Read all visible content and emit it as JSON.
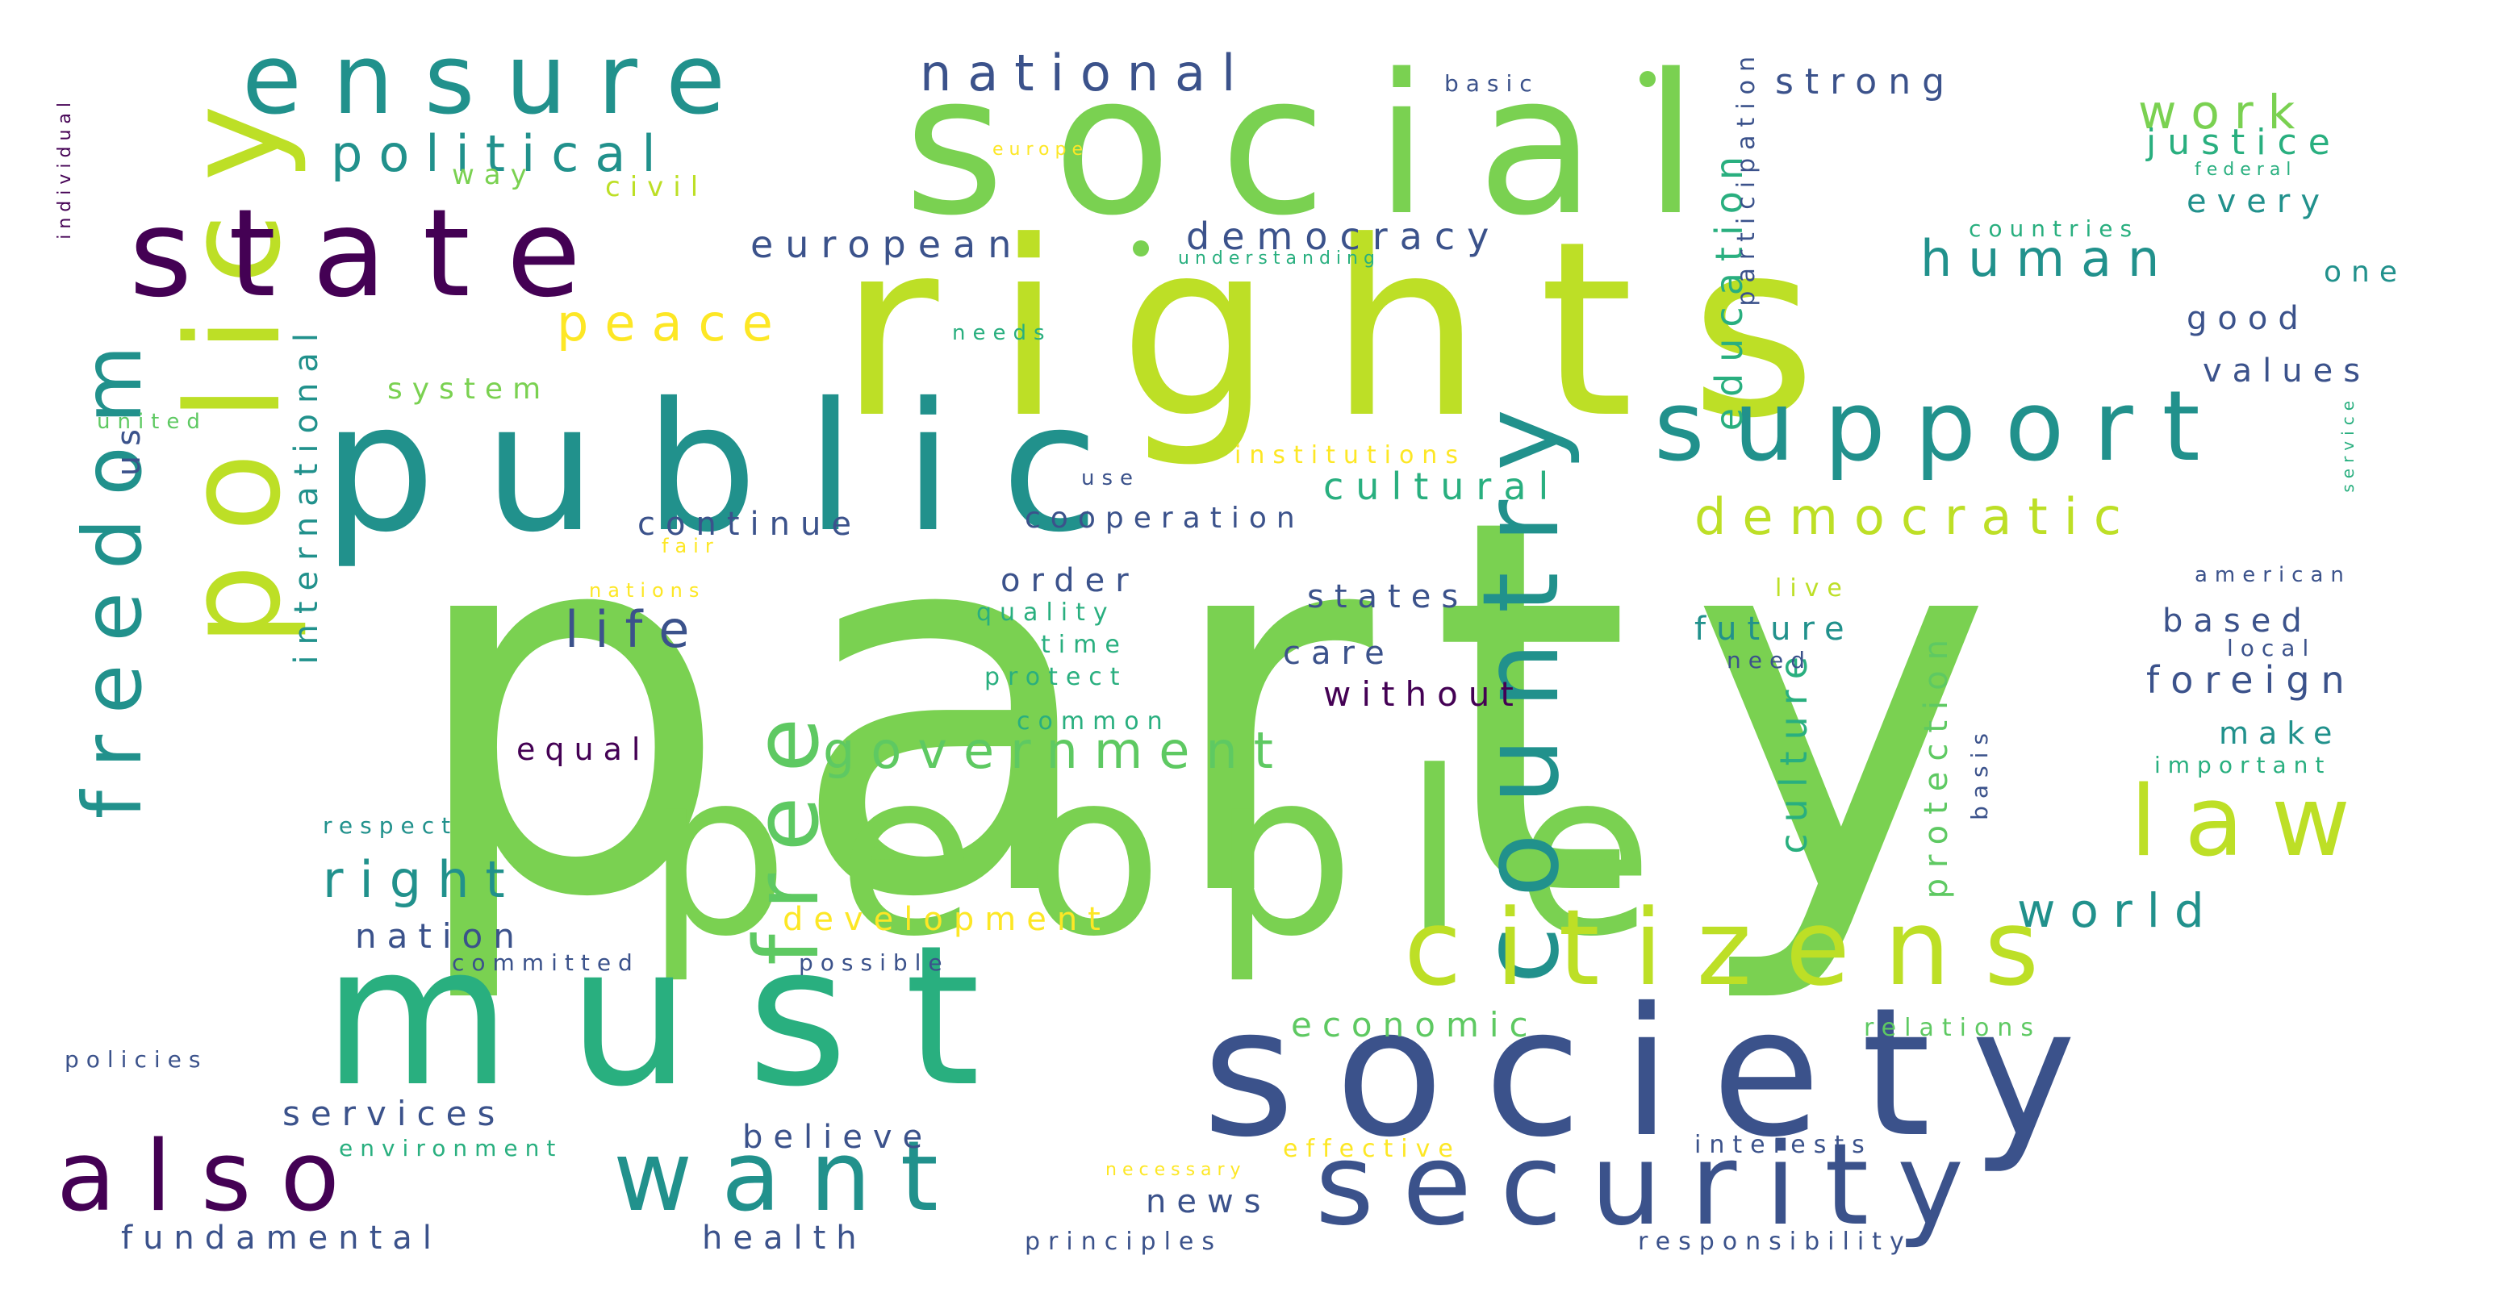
{
  "colors": {
    "background": "#ffffff",
    "palette": [
      "#440154",
      "#3b528b",
      "#21918c",
      "#29af7f",
      "#5ec962",
      "#7ad151",
      "#bddf26",
      "#fde725"
    ]
  },
  "words": [
    {
      "id": "party",
      "text": "party"
    },
    {
      "id": "rights",
      "text": "rights"
    },
    {
      "id": "people",
      "text": "people"
    },
    {
      "id": "social",
      "text": "social"
    },
    {
      "id": "public",
      "text": "public"
    },
    {
      "id": "must",
      "text": "must"
    },
    {
      "id": "society",
      "text": "society"
    },
    {
      "id": "security",
      "text": "security"
    },
    {
      "id": "policy",
      "text": "policy"
    },
    {
      "id": "state",
      "text": "state"
    },
    {
      "id": "ensure",
      "text": "ensure"
    },
    {
      "id": "country",
      "text": "country"
    },
    {
      "id": "citizens",
      "text": "citizens"
    },
    {
      "id": "support",
      "text": "support"
    },
    {
      "id": "also",
      "text": "also"
    },
    {
      "id": "want",
      "text": "want"
    },
    {
      "id": "freedom",
      "text": "freedom"
    },
    {
      "id": "free",
      "text": "free"
    },
    {
      "id": "law",
      "text": "law"
    },
    {
      "id": "national",
      "text": "national"
    },
    {
      "id": "political",
      "text": "political"
    },
    {
      "id": "government",
      "text": "government"
    },
    {
      "id": "democratic",
      "text": "democratic"
    },
    {
      "id": "strong",
      "text": "strong"
    },
    {
      "id": "work",
      "text": "work"
    },
    {
      "id": "justice",
      "text": "justice"
    },
    {
      "id": "human",
      "text": "human"
    },
    {
      "id": "european",
      "text": "european"
    },
    {
      "id": "democracy",
      "text": "democracy"
    },
    {
      "id": "peace",
      "text": "peace"
    },
    {
      "id": "right",
      "text": "right"
    },
    {
      "id": "world",
      "text": "world"
    },
    {
      "id": "life",
      "text": "life"
    },
    {
      "id": "cultural",
      "text": "cultural"
    },
    {
      "id": "education",
      "text": "education"
    },
    {
      "id": "international",
      "text": "international"
    },
    {
      "id": "culture",
      "text": "culture"
    },
    {
      "id": "protection",
      "text": "protection"
    },
    {
      "id": "participation",
      "text": "participation"
    },
    {
      "id": "development",
      "text": "development"
    },
    {
      "id": "economic",
      "text": "economic"
    },
    {
      "id": "services",
      "text": "services"
    },
    {
      "id": "nation",
      "text": "nation"
    },
    {
      "id": "cooperation",
      "text": "cooperation"
    },
    {
      "id": "continue",
      "text": "continue"
    },
    {
      "id": "states",
      "text": "states"
    },
    {
      "id": "future",
      "text": "future"
    },
    {
      "id": "without",
      "text": "without"
    },
    {
      "id": "order",
      "text": "order"
    },
    {
      "id": "equal",
      "text": "equal"
    },
    {
      "id": "care",
      "text": "care"
    },
    {
      "id": "believe",
      "text": "believe"
    },
    {
      "id": "news",
      "text": "news"
    },
    {
      "id": "fundamental",
      "text": "fundamental"
    },
    {
      "id": "health",
      "text": "health"
    },
    {
      "id": "foreign",
      "text": "foreign"
    },
    {
      "id": "based",
      "text": "based"
    },
    {
      "id": "system",
      "text": "system"
    },
    {
      "id": "civil",
      "text": "civil"
    },
    {
      "id": "way",
      "text": "way"
    },
    {
      "id": "every",
      "text": "every"
    },
    {
      "id": "good",
      "text": "good"
    },
    {
      "id": "values",
      "text": "values"
    },
    {
      "id": "one",
      "text": "one"
    },
    {
      "id": "make",
      "text": "make"
    },
    {
      "id": "institutions",
      "text": "institutions"
    },
    {
      "id": "american",
      "text": "american"
    },
    {
      "id": "interests",
      "text": "interests"
    },
    {
      "id": "basic",
      "text": "basic"
    },
    {
      "id": "europe",
      "text": "europe"
    },
    {
      "id": "understanding",
      "text": "understanding"
    },
    {
      "id": "needs",
      "text": "needs"
    },
    {
      "id": "united",
      "text": "united"
    },
    {
      "id": "use",
      "text": "use"
    },
    {
      "id": "fair",
      "text": "fair"
    },
    {
      "id": "nations",
      "text": "nations"
    },
    {
      "id": "quality",
      "text": "quality"
    },
    {
      "id": "time",
      "text": "time"
    },
    {
      "id": "protect",
      "text": "protect"
    },
    {
      "id": "common",
      "text": "common"
    },
    {
      "id": "live",
      "text": "live"
    },
    {
      "id": "need",
      "text": "need"
    },
    {
      "id": "local",
      "text": "local"
    },
    {
      "id": "important",
      "text": "important"
    },
    {
      "id": "basis",
      "text": "basis"
    },
    {
      "id": "countries",
      "text": "countries"
    },
    {
      "id": "federal",
      "text": "federal"
    },
    {
      "id": "service",
      "text": "service"
    },
    {
      "id": "respect",
      "text": "respect"
    },
    {
      "id": "committed",
      "text": "committed"
    },
    {
      "id": "possible",
      "text": "possible"
    },
    {
      "id": "policies",
      "text": "policies"
    },
    {
      "id": "environment",
      "text": "environment"
    },
    {
      "id": "necessary",
      "text": "necessary"
    },
    {
      "id": "effective",
      "text": "effective"
    },
    {
      "id": "relations",
      "text": "relations"
    },
    {
      "id": "principles",
      "text": "principles"
    },
    {
      "id": "responsibility",
      "text": "responsibility"
    },
    {
      "id": "individual",
      "text": "individual"
    },
    {
      "id": "us",
      "text": "us"
    }
  ]
}
